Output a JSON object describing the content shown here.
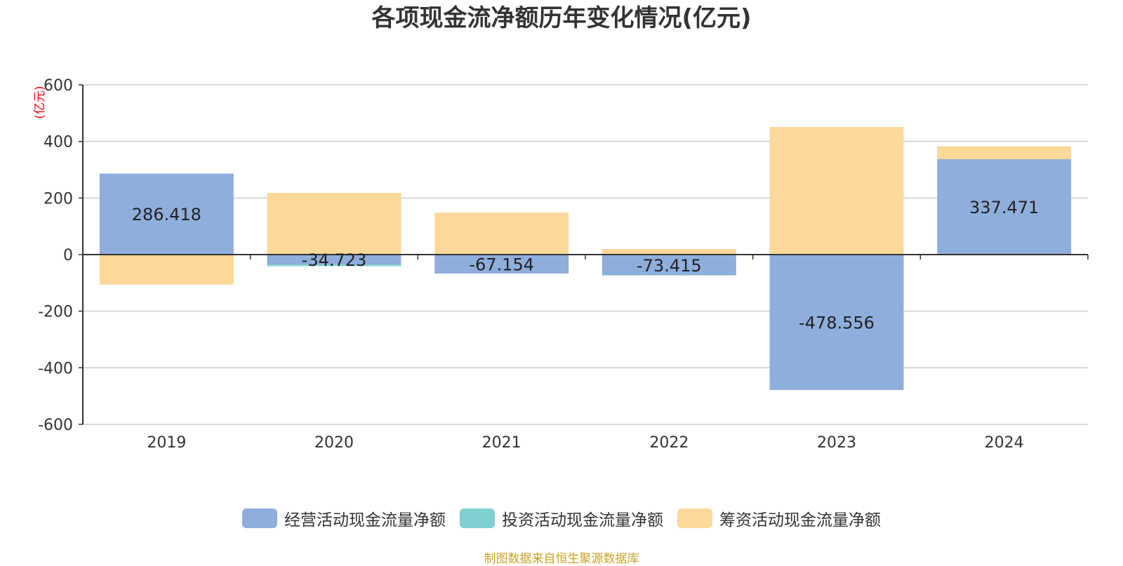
{
  "title": "各项现金流净额历年变化情况(亿元)",
  "source_note": "制图数据来自恒生聚源数据库",
  "colors": {
    "operating": "#8eaedc",
    "investing": "#7fd0d2",
    "financing": "#fdd898",
    "axis_unit": "#ff0000"
  },
  "chart_data": {
    "type": "bar",
    "stacked": true,
    "categories": [
      "2019",
      "2020",
      "2021",
      "2022",
      "2023",
      "2024"
    ],
    "ylabel": "(亿元)",
    "ylim": [
      -600,
      600
    ],
    "yticks": [
      "600",
      "400",
      "200",
      "0",
      "-200",
      "-400",
      "-600"
    ],
    "grid": true,
    "legend_position": "bottom",
    "series": [
      {
        "name": "经营活动现金流量净额",
        "key": "operating",
        "values": [
          286.418,
          -34.723,
          -67.154,
          -73.415,
          -478.556,
          337.471
        ],
        "labels": [
          "286.418",
          "-34.723",
          "-67.154",
          "-73.415",
          "-478.556",
          "337.471"
        ]
      },
      {
        "name": "投资活动现金流量净额",
        "key": "investing",
        "values": [
          0,
          -6,
          3,
          2,
          0,
          0
        ]
      },
      {
        "name": "筹资活动现金流量净额",
        "key": "financing",
        "values": [
          -106,
          218,
          145,
          18,
          451,
          45
        ]
      }
    ]
  }
}
